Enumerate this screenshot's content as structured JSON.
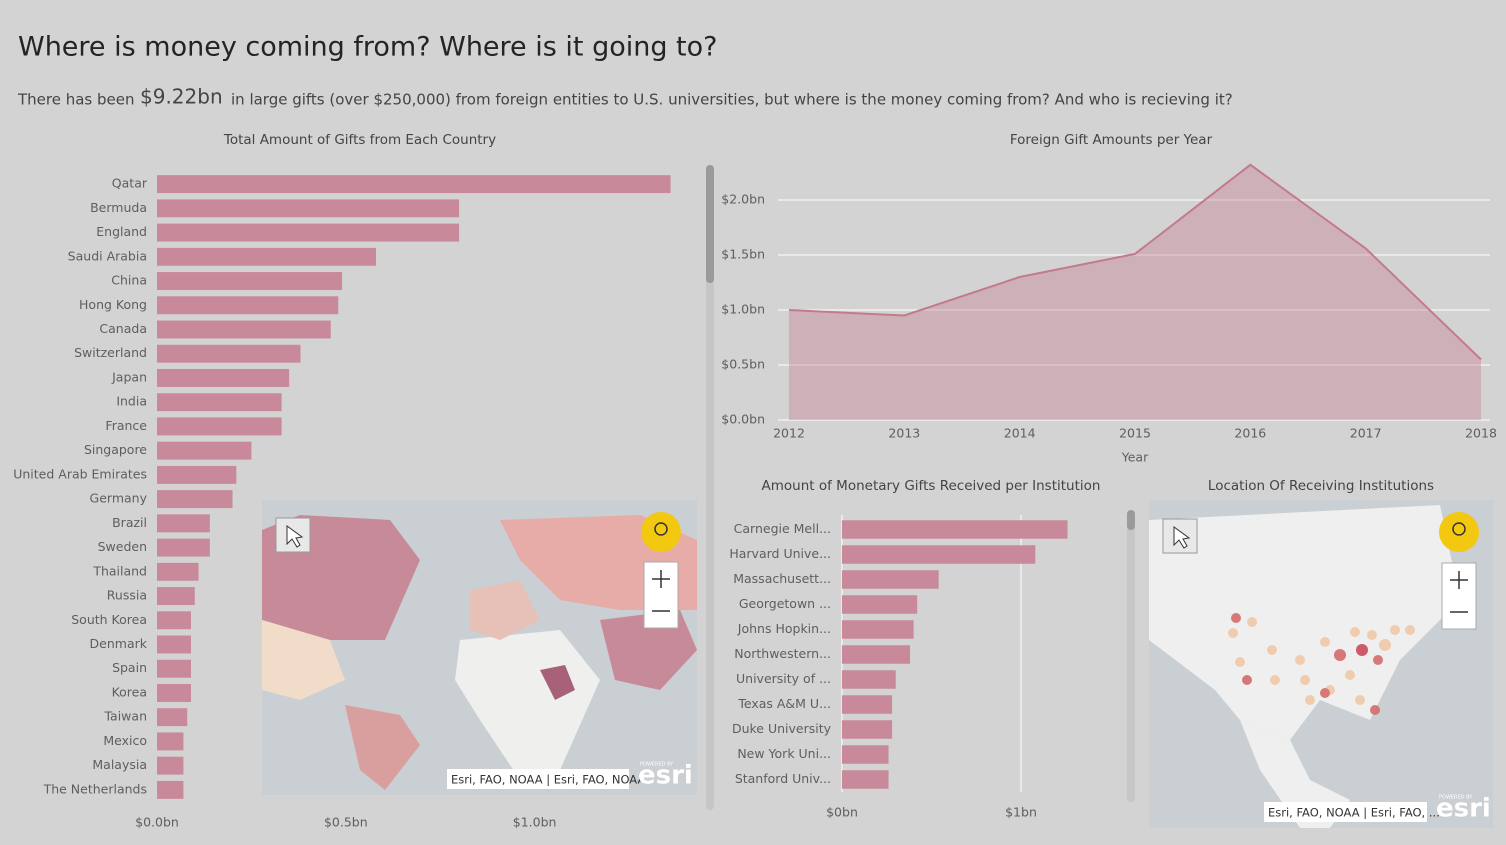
{
  "header": {
    "title": "Where is money coming from? Where is it going to?",
    "lead": "There has been",
    "total": "$9.22bn",
    "rest": "in large gifts (over $250,000) from foreign entities to U.S. universities, but where is the money coming from? And who is recieving it?"
  },
  "chart_data": [
    {
      "type": "bar",
      "orientation": "horizontal",
      "title": "Total Amount of Gifts from Each Country",
      "color": "#c8899a",
      "grid": false,
      "categories": [
        "Qatar",
        "Bermuda",
        "England",
        "Saudi Arabia",
        "China",
        "Hong Kong",
        "Canada",
        "Switzerland",
        "Japan",
        "India",
        "France",
        "Singapore",
        "United Arab Emirates",
        "Germany",
        "Brazil",
        "Sweden",
        "Thailand",
        "Russia",
        "South Korea",
        "Denmark",
        "Spain",
        "Korea",
        "Taiwan",
        "Mexico",
        "Malaysia",
        "The Netherlands"
      ],
      "values": [
        1.36,
        0.8,
        0.8,
        0.58,
        0.49,
        0.48,
        0.46,
        0.38,
        0.35,
        0.33,
        0.33,
        0.25,
        0.21,
        0.2,
        0.14,
        0.14,
        0.11,
        0.1,
        0.09,
        0.09,
        0.09,
        0.09,
        0.08,
        0.07,
        0.07,
        0.07
      ],
      "xlim": [
        0,
        1.43
      ],
      "xticks": [
        {
          "value": 0,
          "label": "$0.0bn"
        },
        {
          "value": 0.5,
          "label": "$0.5bn"
        },
        {
          "value": 1,
          "label": "$1.0bn"
        }
      ]
    },
    {
      "type": "area",
      "title": "Foreign Gift Amounts per Year",
      "x_label": "Year",
      "color": "#c47a8c",
      "grid": true,
      "x": [
        2012,
        2013,
        2014,
        2015,
        2016,
        2017,
        2018
      ],
      "values": [
        1.0,
        0.95,
        1.3,
        1.51,
        2.32,
        1.56,
        0.55
      ],
      "xlim": [
        2012,
        2018
      ],
      "xticks": [
        2012,
        2013,
        2014,
        2015,
        2016,
        2017,
        2018
      ],
      "ylim": [
        0,
        2.4
      ],
      "yticks": [
        {
          "value": 0,
          "label": "$0.0bn"
        },
        {
          "value": 0.5,
          "label": "$0.5bn"
        },
        {
          "value": 1,
          "label": "$1.0bn"
        },
        {
          "value": 1.5,
          "label": "$1.5bn"
        },
        {
          "value": 2,
          "label": "$2.0bn"
        }
      ]
    },
    {
      "type": "bar",
      "orientation": "horizontal",
      "title": "Amount of Monetary Gifts Received per Institution",
      "color": "#c8899a",
      "grid": true,
      "categories": [
        "Carnegie Mell...",
        "Harvard Unive...",
        "Massachusett...",
        "Georgetown ...",
        "Johns Hopkin...",
        "Northwestern...",
        "University of ...",
        "Texas A&M U...",
        "Duke University",
        "New York Uni...",
        "Stanford Univ..."
      ],
      "values": [
        1.26,
        1.08,
        0.54,
        0.42,
        0.4,
        0.38,
        0.3,
        0.28,
        0.28,
        0.26,
        0.26
      ],
      "xlim": [
        0,
        1.5
      ],
      "xticks": [
        {
          "value": 0,
          "label": "$0bn"
        },
        {
          "value": 1,
          "label": "$1bn"
        }
      ]
    }
  ],
  "maps": [
    {
      "attribution": "Esri, FAO, NOAA | Esri, FAO, NOAA",
      "brand": "esri",
      "powered": "POWERED BY"
    },
    {
      "title": "Location Of Receiving Institutions",
      "attribution": "Esri, FAO, NOAA | Esri, FAO, ...",
      "brand": "esri",
      "powered": "POWERED BY"
    }
  ]
}
